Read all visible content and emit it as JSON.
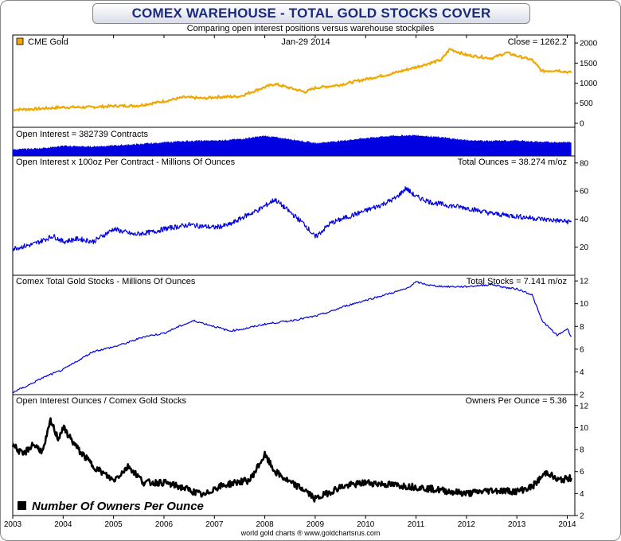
{
  "title": "COMEX WAREHOUSE - TOTAL GOLD STOCKS COVER",
  "subtitle": "Comparing open interest positions versus warehouse stockpiles",
  "credit": "world gold charts ® www.goldchartsrus.com",
  "x_axis": {
    "min": 2003,
    "max": 2014.15,
    "ticks": [
      "2003",
      "2004",
      "2005",
      "2006",
      "2007",
      "2008",
      "2009",
      "2010",
      "2011",
      "2012",
      "2013",
      "2014"
    ]
  },
  "colors": {
    "gold": "#f0a800",
    "blue": "#0000e0",
    "black": "#000000"
  },
  "chart_data": [
    {
      "type": "line",
      "legend": "CME Gold",
      "center_label": "Jan-29  2014",
      "right_label": "Close = 1262.2",
      "ylim": [
        -100,
        2200
      ],
      "yticks": [
        0,
        500,
        1000,
        1500,
        2000
      ],
      "x": [
        2003.0,
        2003.5,
        2004.0,
        2004.5,
        2005.0,
        2005.5,
        2006.0,
        2006.4,
        2006.8,
        2007.0,
        2007.5,
        2008.0,
        2008.2,
        2008.8,
        2009.0,
        2009.5,
        2010.0,
        2010.5,
        2011.0,
        2011.5,
        2011.67,
        2012.0,
        2012.5,
        2012.8,
        2013.0,
        2013.3,
        2013.5,
        2013.8,
        2014.08
      ],
      "values": [
        340,
        360,
        400,
        400,
        430,
        440,
        550,
        650,
        620,
        650,
        670,
        900,
        980,
        780,
        880,
        960,
        1100,
        1230,
        1400,
        1580,
        1850,
        1700,
        1620,
        1760,
        1680,
        1580,
        1300,
        1320,
        1262
      ]
    },
    {
      "type": "area",
      "left_label": "Open Interest = 382739 Contracts",
      "ylim": [
        0,
        800000
      ],
      "x": [
        2003.0,
        2003.5,
        2004.0,
        2004.5,
        2005.0,
        2005.5,
        2006.0,
        2006.5,
        2007.0,
        2007.5,
        2008.0,
        2008.5,
        2009.0,
        2009.5,
        2010.0,
        2010.5,
        2011.0,
        2011.5,
        2012.0,
        2012.5,
        2013.0,
        2013.5,
        2014.08
      ],
      "values": [
        180000,
        210000,
        280000,
        260000,
        290000,
        330000,
        380000,
        420000,
        430000,
        470000,
        560000,
        470000,
        360000,
        420000,
        500000,
        560000,
        580000,
        520000,
        440000,
        420000,
        430000,
        390000,
        382739
      ]
    },
    {
      "type": "line",
      "left_label": "Open Interest x 100oz Per Contract - Millions Of Ounces",
      "right_label": "Total Ounces = 38.274 m/oz",
      "ylim": [
        0,
        85
      ],
      "yticks": [
        20,
        40,
        60,
        80
      ],
      "x": [
        2003.0,
        2003.4,
        2003.8,
        2004.0,
        2004.3,
        2004.6,
        2005.0,
        2005.4,
        2005.8,
        2006.0,
        2006.5,
        2007.0,
        2007.3,
        2007.6,
        2007.9,
        2008.2,
        2008.5,
        2008.8,
        2009.0,
        2009.3,
        2009.6,
        2010.0,
        2010.3,
        2010.6,
        2010.8,
        2011.0,
        2011.3,
        2011.6,
        2012.0,
        2012.5,
        2013.0,
        2013.5,
        2014.08
      ],
      "values": [
        19,
        22,
        28,
        24,
        26,
        24,
        33,
        29,
        31,
        33,
        36,
        34,
        36,
        42,
        47,
        54,
        45,
        36,
        27,
        37,
        41,
        46,
        50,
        55,
        62,
        56,
        52,
        50,
        48,
        44,
        42,
        40,
        38
      ]
    },
    {
      "type": "line",
      "left_label": "Comex Total Gold Stocks - Millions Of Ounces",
      "right_label": "Total Stocks = 7.141 m/oz",
      "ylim": [
        2,
        12.5
      ],
      "yticks": [
        2,
        4,
        6,
        8,
        10,
        12
      ],
      "x": [
        2003.0,
        2003.3,
        2003.6,
        2004.0,
        2004.3,
        2004.6,
        2005.0,
        2005.3,
        2005.6,
        2006.0,
        2006.3,
        2006.6,
        2007.0,
        2007.3,
        2007.6,
        2008.0,
        2008.5,
        2009.0,
        2009.3,
        2009.6,
        2010.0,
        2010.4,
        2010.8,
        2011.0,
        2011.3,
        2011.6,
        2012.0,
        2012.5,
        2012.8,
        2013.0,
        2013.3,
        2013.5,
        2013.8,
        2014.0,
        2014.08
      ],
      "values": [
        2.2,
        2.8,
        3.5,
        4.2,
        5.0,
        5.8,
        6.2,
        6.6,
        7.1,
        7.4,
        8.0,
        8.5,
        8.0,
        7.6,
        7.8,
        8.2,
        8.5,
        8.9,
        9.3,
        9.8,
        10.3,
        10.8,
        11.3,
        11.9,
        11.6,
        11.5,
        11.5,
        11.7,
        11.4,
        11.3,
        10.8,
        8.5,
        7.2,
        7.8,
        7.1
      ]
    },
    {
      "type": "line",
      "left_label": "Open Interest Ounces / Comex Gold Stocks",
      "right_label": "Owners Per Ounce = 5.36",
      "legend": "Number Of Owners Per Ounce",
      "ylim": [
        2,
        13
      ],
      "yticks": [
        2,
        4,
        6,
        8,
        10,
        12
      ],
      "x": [
        2003.0,
        2003.2,
        2003.4,
        2003.6,
        2003.75,
        2003.9,
        2004.0,
        2004.3,
        2004.6,
        2004.9,
        2005.0,
        2005.3,
        2005.6,
        2006.0,
        2006.4,
        2006.8,
        2007.0,
        2007.4,
        2007.7,
        2008.0,
        2008.2,
        2008.5,
        2008.8,
        2009.0,
        2009.5,
        2010.0,
        2010.5,
        2011.0,
        2011.5,
        2012.0,
        2012.5,
        2013.0,
        2013.3,
        2013.6,
        2013.8,
        2014.08
      ],
      "values": [
        8.5,
        7.5,
        8.5,
        7.8,
        10.6,
        9.0,
        10.0,
        8.0,
        6.5,
        5.5,
        5.2,
        6.5,
        5.0,
        5.0,
        4.5,
        3.8,
        4.5,
        5.0,
        5.2,
        7.5,
        6.0,
        5.0,
        4.3,
        3.5,
        4.6,
        5.0,
        4.8,
        4.6,
        4.3,
        4.0,
        4.3,
        4.2,
        4.6,
        6.0,
        5.2,
        5.4
      ]
    }
  ]
}
